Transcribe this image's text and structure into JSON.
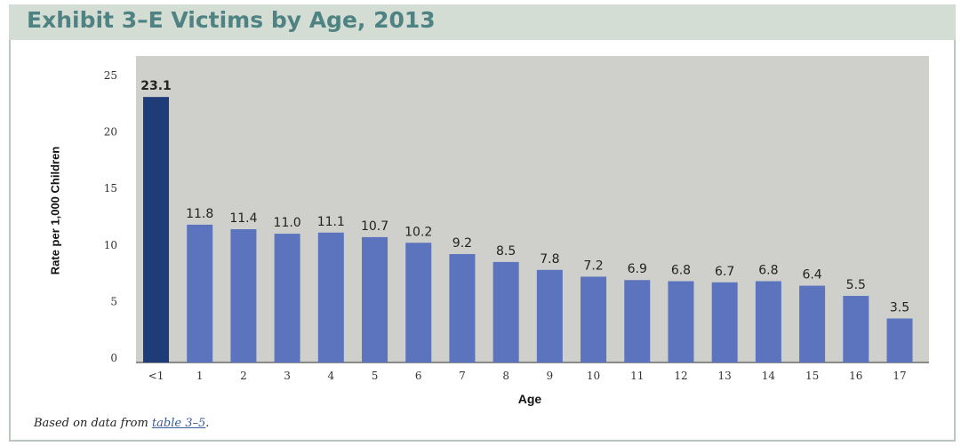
{
  "header": {
    "title": "Exhibit 3–E Victims by Age, 2013"
  },
  "footnote": {
    "prefix": "Based on data from ",
    "link": "table 3–5",
    "suffix": "."
  },
  "colors": {
    "header_bg": "#d3ddd3",
    "header_text": "#4f8282",
    "plot_bg": "#cfcfcb",
    "bar": "#5b74bd",
    "bar_highlight": "#1e3c78"
  },
  "chart_data": {
    "type": "bar",
    "title": "Exhibit 3–E Victims by Age, 2013",
    "xlabel": "Age",
    "ylabel": "Rate per 1,000 Children",
    "categories": [
      "<1",
      "1",
      "2",
      "3",
      "4",
      "5",
      "6",
      "7",
      "8",
      "9",
      "10",
      "11",
      "12",
      "13",
      "14",
      "15",
      "16",
      "17"
    ],
    "values": [
      23.1,
      11.8,
      11.4,
      11.0,
      11.1,
      10.7,
      10.2,
      9.2,
      8.5,
      7.8,
      7.2,
      6.9,
      6.8,
      6.7,
      6.8,
      6.4,
      5.5,
      3.5
    ],
    "value_labels": [
      "23.1",
      "11.8",
      "11.4",
      "11.0",
      "11.1",
      "10.7",
      "10.2",
      "9.2",
      "8.5",
      "7.8",
      "7.2",
      "6.9",
      "6.8",
      "6.7",
      "6.8",
      "6.4",
      "5.5",
      "3.5"
    ],
    "yticks": [
      "0",
      "5",
      "10",
      "15",
      "20",
      "25"
    ],
    "ylim": [
      0,
      25
    ],
    "highlight_index": 0,
    "grid": false,
    "legend": "none"
  }
}
